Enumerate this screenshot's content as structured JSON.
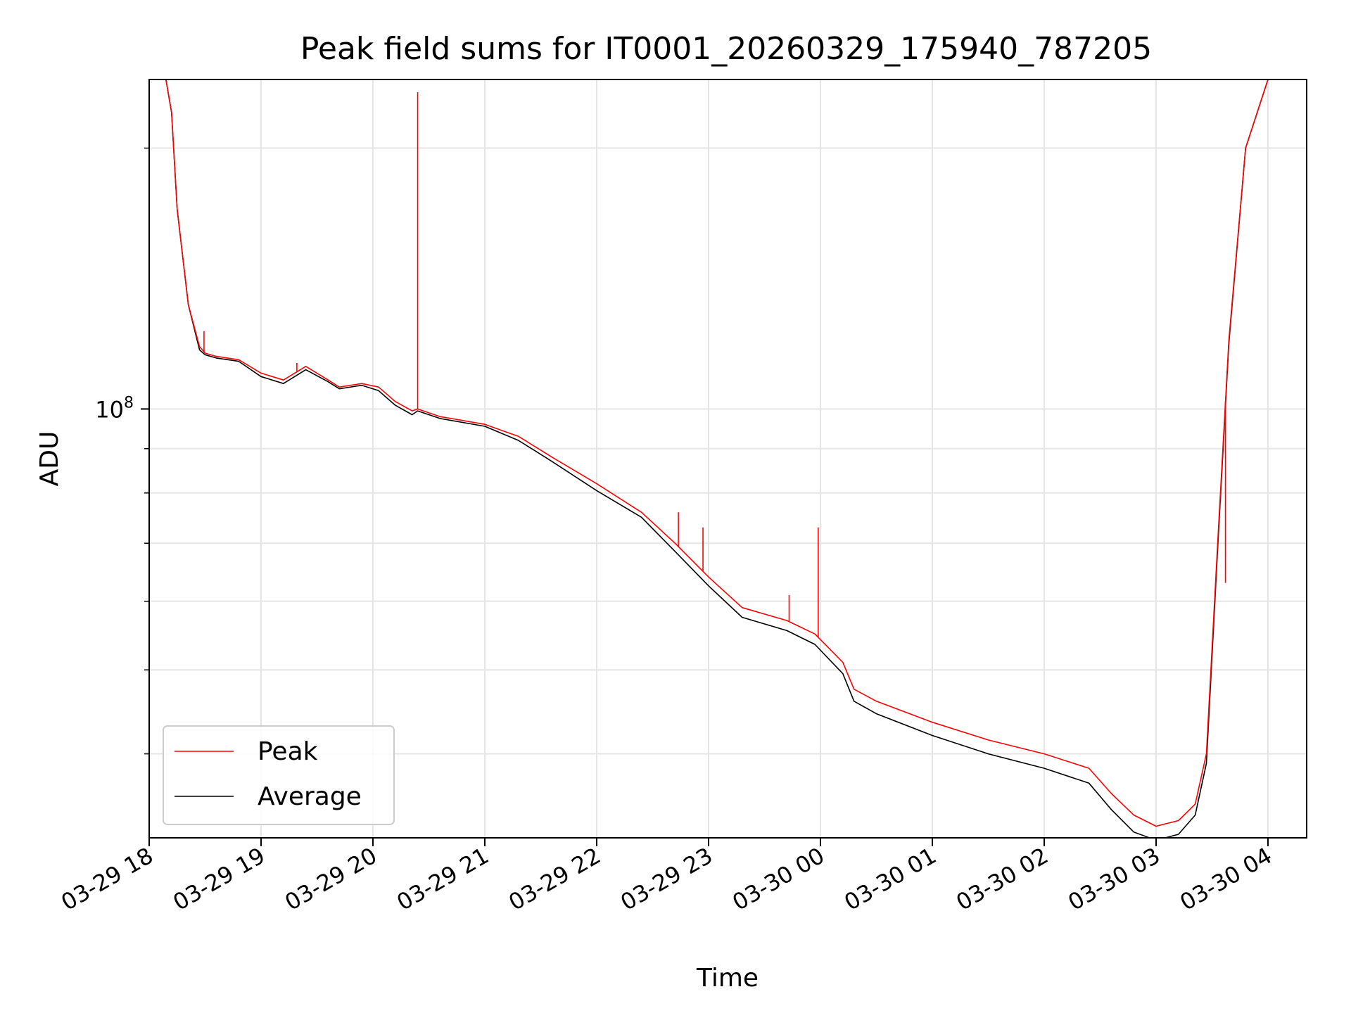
{
  "chart_data": {
    "type": "line",
    "title": "Peak field sums for IT0001_20260329_175940_787205",
    "xlabel": "Time",
    "ylabel": "ADU",
    "y_scale": "log",
    "ylim": [
      32000000,
      240000000
    ],
    "xlim_hours": [
      0.0,
      10.35
    ],
    "x_start": "2026-03-29 18:00",
    "grid": true,
    "legend_position": "lower-left",
    "x_ticks": [
      {
        "hour": 0,
        "label": "03-29 18"
      },
      {
        "hour": 1,
        "label": "03-29 19"
      },
      {
        "hour": 2,
        "label": "03-29 20"
      },
      {
        "hour": 3,
        "label": "03-29 21"
      },
      {
        "hour": 4,
        "label": "03-29 22"
      },
      {
        "hour": 5,
        "label": "03-29 23"
      },
      {
        "hour": 6,
        "label": "03-30 00"
      },
      {
        "hour": 7,
        "label": "03-30 01"
      },
      {
        "hour": 8,
        "label": "03-30 02"
      },
      {
        "hour": 9,
        "label": "03-30 03"
      },
      {
        "hour": 10,
        "label": "03-30 04"
      }
    ],
    "y_major_ticks": [
      {
        "value": 100000000,
        "label_base": "10",
        "label_exp": "8"
      }
    ],
    "y_minor_ticks": [
      40000000,
      50000000,
      60000000,
      70000000,
      80000000,
      90000000,
      200000000
    ],
    "series": [
      {
        "name": "Peak",
        "color": "#ff0000",
        "x": [
          0.15,
          0.2,
          0.25,
          0.35,
          0.45,
          0.5,
          0.6,
          0.8,
          1.0,
          1.2,
          1.4,
          1.6,
          1.7,
          1.9,
          2.05,
          2.2,
          2.35,
          2.4,
          2.6,
          3.0,
          3.3,
          3.6,
          4.0,
          4.4,
          4.7,
          5.0,
          5.3,
          5.7,
          5.95,
          6.2,
          6.3,
          6.5,
          7.0,
          7.5,
          8.0,
          8.4,
          8.6,
          8.8,
          9.0,
          9.2,
          9.35,
          9.45,
          9.55,
          9.65,
          9.8,
          10.0,
          10.2
        ],
        "y": [
          240000000,
          220000000,
          170000000,
          132000000,
          118000000,
          116000000,
          115000000,
          114000000,
          110000000,
          108000000,
          112000000,
          108000000,
          106000000,
          107000000,
          106000000,
          102000000,
          99500000,
          100000000,
          98000000,
          96000000,
          93000000,
          88000000,
          82000000,
          76000000,
          70000000,
          64000000,
          59000000,
          57000000,
          55000000,
          51000000,
          47500000,
          46000000,
          43500000,
          41500000,
          40000000,
          38500000,
          36000000,
          34000000,
          33000000,
          33500000,
          35000000,
          40000000,
          70000000,
          120000000,
          200000000,
          240000000,
          240000000
        ],
        "spikes": [
          {
            "x": 0.49,
            "y": 123000000
          },
          {
            "x": 1.32,
            "y": 113000000
          },
          {
            "x": 2.4,
            "y": 232000000
          },
          {
            "x": 4.73,
            "y": 76000000
          },
          {
            "x": 4.95,
            "y": 73000000
          },
          {
            "x": 5.72,
            "y": 61000000
          },
          {
            "x": 5.98,
            "y": 73000000
          },
          {
            "x": 9.62,
            "y": 63000000
          }
        ]
      },
      {
        "name": "Average",
        "color": "#000000",
        "x": [
          0.15,
          0.2,
          0.25,
          0.35,
          0.45,
          0.5,
          0.6,
          0.8,
          1.0,
          1.2,
          1.4,
          1.6,
          1.7,
          1.9,
          2.05,
          2.2,
          2.35,
          2.4,
          2.6,
          3.0,
          3.3,
          3.6,
          4.0,
          4.4,
          4.7,
          5.0,
          5.3,
          5.7,
          5.95,
          6.2,
          6.3,
          6.5,
          7.0,
          7.5,
          8.0,
          8.4,
          8.6,
          8.8,
          9.0,
          9.2,
          9.35,
          9.45,
          9.55,
          9.65,
          9.8,
          10.0,
          10.2
        ],
        "y": [
          240000000,
          220000000,
          170000000,
          132000000,
          117000000,
          115500000,
          114500000,
          113500000,
          109000000,
          107000000,
          111000000,
          107500000,
          105500000,
          106500000,
          105000000,
          101000000,
          98500000,
          99500000,
          97500000,
          95500000,
          92000000,
          87000000,
          80500000,
          75000000,
          68500000,
          62500000,
          57500000,
          55500000,
          53500000,
          49500000,
          46000000,
          44500000,
          42000000,
          40000000,
          38500000,
          37000000,
          34500000,
          32500000,
          31800000,
          32300000,
          34000000,
          39000000,
          69000000,
          119000000,
          200000000,
          240000000,
          240000000
        ]
      }
    ]
  }
}
